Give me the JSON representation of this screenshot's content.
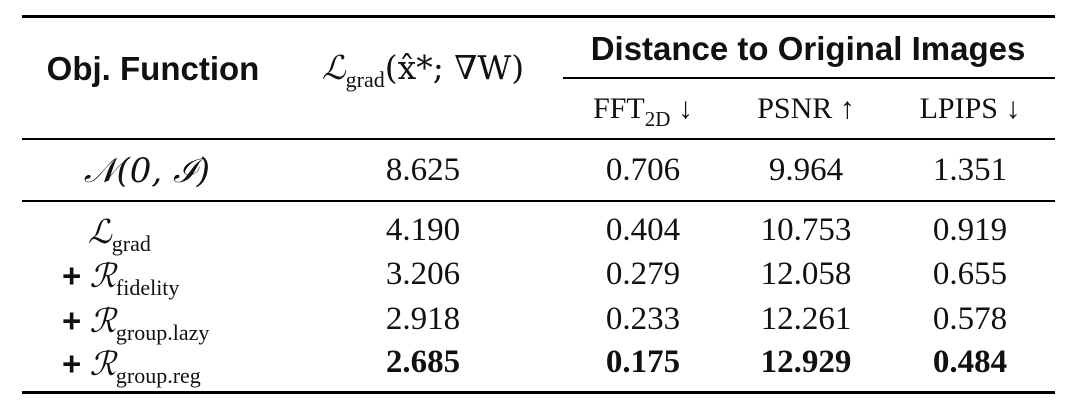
{
  "header": {
    "col1": "Obj. Function",
    "col2_prefix": "ℒ",
    "col2_sub": "grad",
    "col2_args": "(x̂*; ∇W)",
    "group": "Distance to Original Images",
    "metrics": [
      {
        "name": "FFT",
        "sub": "2D",
        "arrow": "↓"
      },
      {
        "name": "PSNR",
        "sub": "",
        "arrow": "↑"
      },
      {
        "name": "LPIPS",
        "sub": "",
        "arrow": "↓"
      }
    ]
  },
  "baseline": {
    "label": "𝒩(0, ℐ)",
    "values": [
      "8.625",
      "0.706",
      "9.964",
      "1.351"
    ]
  },
  "rows": [
    {
      "plus": "",
      "sym": "ℒ",
      "sub": "grad",
      "values": [
        "4.190",
        "0.404",
        "10.753",
        "0.919"
      ],
      "bold": false
    },
    {
      "plus": "+",
      "sym": "ℛ",
      "sub": "fidelity",
      "values": [
        "3.206",
        "0.279",
        "12.058",
        "0.655"
      ],
      "bold": false
    },
    {
      "plus": "+",
      "sym": "ℛ",
      "sub": "group.lazy",
      "values": [
        "2.918",
        "0.233",
        "12.261",
        "0.578"
      ],
      "bold": false
    },
    {
      "plus": "+",
      "sym": "ℛ",
      "sub": "group.reg",
      "values": [
        "2.685",
        "0.175",
        "12.929",
        "0.484"
      ],
      "bold": true
    }
  ]
}
